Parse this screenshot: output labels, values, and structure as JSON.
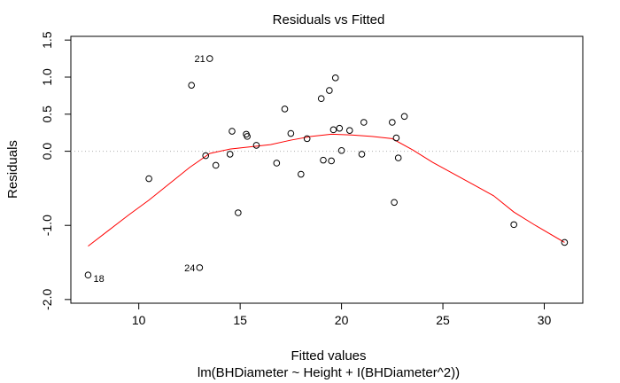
{
  "chart_data": {
    "type": "scatter",
    "title": "Residuals vs Fitted",
    "xlabel": "Fitted values",
    "sublabel": "lm(BHDiameter ~ Height + I(BHDiameter^2))",
    "ylabel": "Residuals",
    "xlim": [
      6.65,
      31.9
    ],
    "ylim": [
      -2.05,
      1.55
    ],
    "xticks": [
      10,
      15,
      20,
      25,
      30
    ],
    "yticks": [
      -2.0,
      -1.0,
      0.0,
      0.5,
      1.0,
      1.5
    ],
    "ytick_labels": [
      "-2.0",
      "-1.0",
      "0.0",
      "0.5",
      "1.0",
      "1.5"
    ],
    "reference_line": {
      "y": 0,
      "style": "dotted",
      "color": "#b0b0b0"
    },
    "points": [
      {
        "x": 7.5,
        "y": -1.67
      },
      {
        "x": 10.5,
        "y": -0.37
      },
      {
        "x": 12.6,
        "y": 0.89
      },
      {
        "x": 13.0,
        "y": -1.57
      },
      {
        "x": 13.3,
        "y": -0.06
      },
      {
        "x": 13.5,
        "y": 1.25
      },
      {
        "x": 13.8,
        "y": -0.19
      },
      {
        "x": 14.5,
        "y": -0.04
      },
      {
        "x": 14.6,
        "y": 0.27
      },
      {
        "x": 14.9,
        "y": -0.83
      },
      {
        "x": 15.3,
        "y": 0.23
      },
      {
        "x": 15.35,
        "y": 0.2
      },
      {
        "x": 15.8,
        "y": 0.08
      },
      {
        "x": 16.8,
        "y": -0.16
      },
      {
        "x": 17.2,
        "y": 0.57
      },
      {
        "x": 17.5,
        "y": 0.24
      },
      {
        "x": 18.0,
        "y": -0.31
      },
      {
        "x": 18.3,
        "y": 0.17
      },
      {
        "x": 19.0,
        "y": 0.71
      },
      {
        "x": 19.1,
        "y": -0.12
      },
      {
        "x": 19.4,
        "y": 0.82
      },
      {
        "x": 19.5,
        "y": -0.13
      },
      {
        "x": 19.6,
        "y": 0.29
      },
      {
        "x": 19.7,
        "y": 0.99
      },
      {
        "x": 19.9,
        "y": 0.31
      },
      {
        "x": 20.0,
        "y": 0.01
      },
      {
        "x": 20.4,
        "y": 0.28
      },
      {
        "x": 21.0,
        "y": -0.04
      },
      {
        "x": 21.1,
        "y": 0.39
      },
      {
        "x": 22.5,
        "y": 0.39
      },
      {
        "x": 22.6,
        "y": -0.69
      },
      {
        "x": 22.7,
        "y": 0.18
      },
      {
        "x": 22.8,
        "y": -0.09
      },
      {
        "x": 23.1,
        "y": 0.47
      },
      {
        "x": 28.5,
        "y": -0.99
      },
      {
        "x": 31.0,
        "y": -1.23
      }
    ],
    "point_labels": [
      {
        "text": "21",
        "x": 13.5,
        "y": 1.25,
        "side": "left"
      },
      {
        "text": "24",
        "x": 13.0,
        "y": -1.57,
        "side": "left"
      },
      {
        "text": "18",
        "x": 7.5,
        "y": -1.67,
        "side": "right"
      }
    ],
    "smooth_line": {
      "color": "#ff0000",
      "points": [
        [
          7.5,
          -1.28
        ],
        [
          8.5,
          -1.07
        ],
        [
          9.5,
          -0.86
        ],
        [
          10.5,
          -0.66
        ],
        [
          11.5,
          -0.44
        ],
        [
          12.5,
          -0.22
        ],
        [
          13.5,
          -0.03
        ],
        [
          14.5,
          0.03
        ],
        [
          15.5,
          0.06
        ],
        [
          16.5,
          0.09
        ],
        [
          17.5,
          0.15
        ],
        [
          18.5,
          0.2
        ],
        [
          19.5,
          0.23
        ],
        [
          20.5,
          0.22
        ],
        [
          21.5,
          0.2
        ],
        [
          22.5,
          0.17
        ],
        [
          23.5,
          0.02
        ],
        [
          24.5,
          -0.15
        ],
        [
          25.5,
          -0.3
        ],
        [
          26.5,
          -0.45
        ],
        [
          27.5,
          -0.6
        ],
        [
          28.5,
          -0.82
        ],
        [
          29.5,
          -0.99
        ],
        [
          31.0,
          -1.23
        ]
      ]
    }
  }
}
